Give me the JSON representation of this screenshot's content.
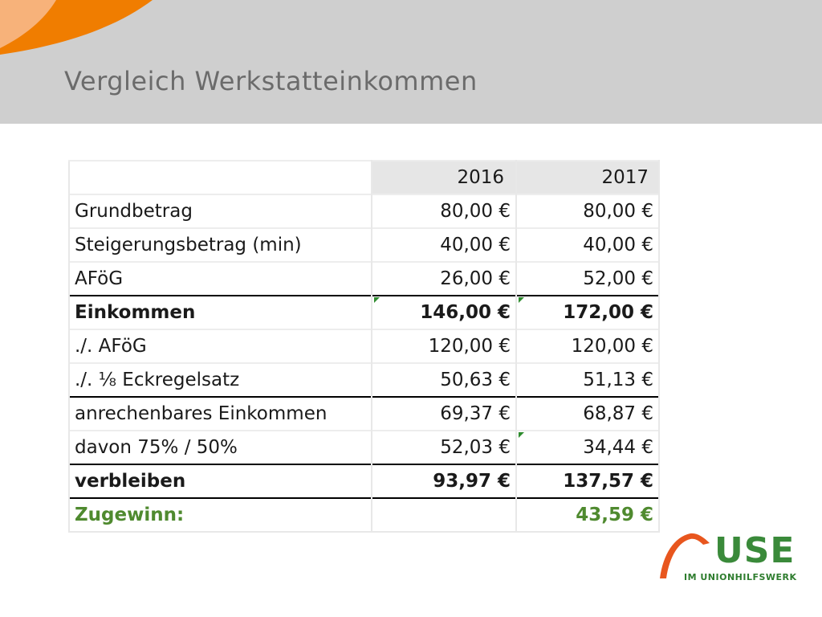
{
  "slide": {
    "title": "Vergleich Werkstatteinkommen"
  },
  "colors": {
    "header_bg": "#cfcfcf",
    "accent_orange": "#f07d00",
    "accent_light_orange": "#f7b27a",
    "highlight_green": "#4f8a2f",
    "logo_green": "#3a8a3a"
  },
  "table": {
    "columns": [
      "",
      "2016",
      "2017"
    ],
    "rows": [
      {
        "label": "Grundbetrag",
        "v2016": "80,00 €",
        "v2017": "80,00 €"
      },
      {
        "label": "Steigerungsbetrag (min)",
        "v2016": "40,00 €",
        "v2017": "40,00 €"
      },
      {
        "label": "AFöG",
        "v2016": "26,00 €",
        "v2017": "52,00 €"
      },
      {
        "label": "Einkommen",
        "v2016": "146,00 €",
        "v2017": "172,00 €"
      },
      {
        "label": "./. AFöG",
        "v2016": "120,00 €",
        "v2017": "120,00 €"
      },
      {
        "label": "./. ⅛ Eckregelsatz",
        "v2016": "50,63 €",
        "v2017": "51,13 €"
      },
      {
        "label": "anrechenbares Einkommen",
        "v2016": "69,37 €",
        "v2017": "68,87 €"
      },
      {
        "label": "davon 75% / 50%",
        "v2016": "52,03 €",
        "v2017": "34,44 €"
      },
      {
        "label": "verbleiben",
        "v2016": "93,97 €",
        "v2017": "137,57 €"
      },
      {
        "label": "Zugewinn:",
        "v2016": "",
        "v2017": "43,59 €"
      }
    ]
  },
  "logo": {
    "name": "USE",
    "subtitle": "IM UNIONHILFSWERK"
  }
}
